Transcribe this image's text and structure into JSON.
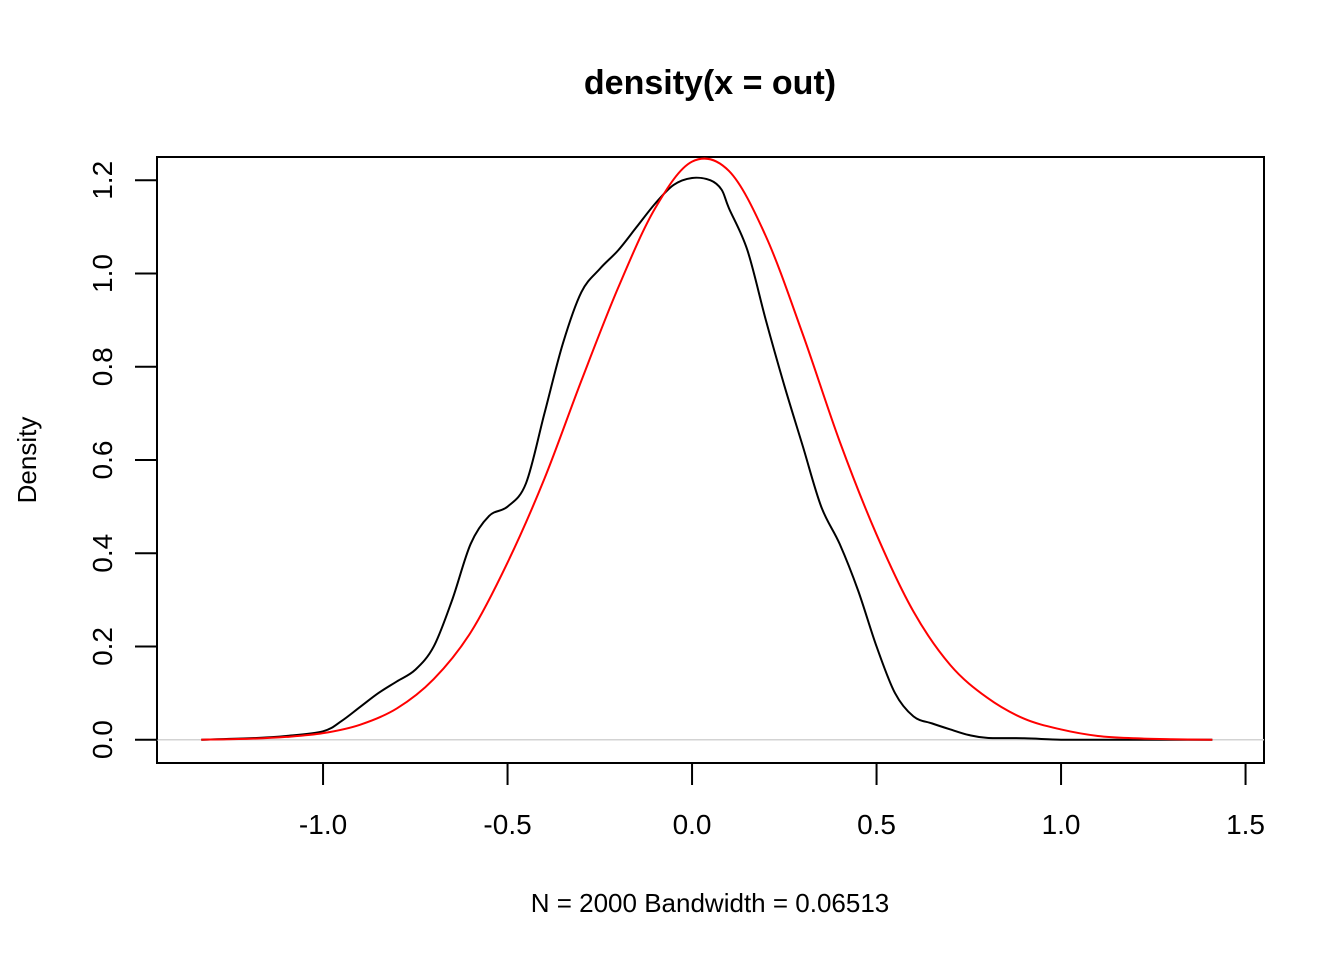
{
  "chart_data": {
    "type": "line",
    "title": "density(x = out)",
    "xlabel": "N = 2000   Bandwidth = 0.06513",
    "ylabel": "Density",
    "xlim": [
      -1.45,
      1.55
    ],
    "ylim": [
      -0.05,
      1.25
    ],
    "x_ticks": [
      -1.0,
      -0.5,
      0.0,
      0.5,
      1.0,
      1.5
    ],
    "x_tick_labels": [
      "-1.0",
      "-0.5",
      "0.0",
      "0.5",
      "1.0",
      "1.5"
    ],
    "y_ticks": [
      0.0,
      0.2,
      0.4,
      0.6,
      0.8,
      1.0,
      1.2
    ],
    "y_tick_labels": [
      "0.0",
      "0.2",
      "0.4",
      "0.6",
      "0.8",
      "1.0",
      "1.2"
    ],
    "baseline": 0.0,
    "grid": false,
    "series": [
      {
        "color": "#000000",
        "x": [
          -1.33,
          -1.2,
          -1.1,
          -1.0,
          -0.95,
          -0.9,
          -0.85,
          -0.8,
          -0.75,
          -0.7,
          -0.65,
          -0.6,
          -0.55,
          -0.5,
          -0.45,
          -0.4,
          -0.35,
          -0.3,
          -0.25,
          -0.2,
          -0.15,
          -0.1,
          -0.05,
          0.0,
          0.05,
          0.08,
          0.1,
          0.15,
          0.2,
          0.25,
          0.3,
          0.35,
          0.4,
          0.45,
          0.5,
          0.55,
          0.6,
          0.65,
          0.7,
          0.75,
          0.8,
          0.9,
          1.0,
          1.1,
          1.2,
          1.3,
          1.41
        ],
        "y": [
          0.0,
          0.003,
          0.008,
          0.018,
          0.04,
          0.07,
          0.1,
          0.125,
          0.15,
          0.2,
          0.3,
          0.42,
          0.48,
          0.5,
          0.55,
          0.7,
          0.85,
          0.96,
          1.01,
          1.05,
          1.1,
          1.15,
          1.19,
          1.205,
          1.2,
          1.18,
          1.14,
          1.05,
          0.9,
          0.76,
          0.63,
          0.5,
          0.42,
          0.32,
          0.2,
          0.1,
          0.05,
          0.035,
          0.022,
          0.01,
          0.004,
          0.003,
          0.0,
          0.0,
          0.0,
          0.0,
          0.0
        ]
      },
      {
        "color": "#ff0000",
        "x": [
          -1.33,
          -1.2,
          -1.1,
          -1.0,
          -0.9,
          -0.8,
          -0.7,
          -0.6,
          -0.5,
          -0.4,
          -0.3,
          -0.2,
          -0.1,
          0.0,
          0.1,
          0.2,
          0.3,
          0.4,
          0.5,
          0.6,
          0.7,
          0.8,
          0.9,
          1.0,
          1.1,
          1.2,
          1.3,
          1.41
        ],
        "y": [
          0.0,
          0.002,
          0.006,
          0.014,
          0.032,
          0.067,
          0.13,
          0.23,
          0.38,
          0.56,
          0.77,
          0.97,
          1.14,
          1.24,
          1.22,
          1.08,
          0.87,
          0.64,
          0.44,
          0.275,
          0.16,
          0.09,
          0.045,
          0.022,
          0.008,
          0.003,
          0.001,
          0.0
        ]
      }
    ]
  }
}
